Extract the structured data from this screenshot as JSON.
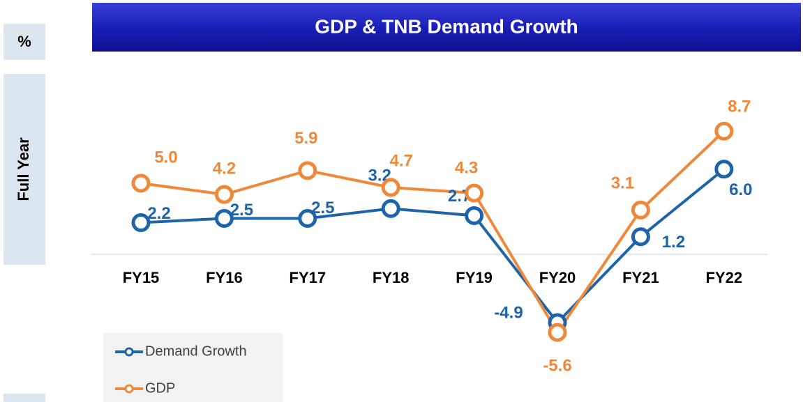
{
  "chart_data": {
    "type": "line",
    "title": "GDP & TNB Demand Growth",
    "unit_label": "%",
    "side_label": "Full Year",
    "categories": [
      "FY15",
      "FY16",
      "FY17",
      "FY18",
      "FY19",
      "FY20",
      "FY21",
      "FY22"
    ],
    "series": [
      {
        "name": "Demand Growth",
        "color": "#1d64a8",
        "values": [
          2.2,
          2.5,
          2.5,
          3.2,
          2.7,
          -4.9,
          1.2,
          6.0
        ],
        "value_labels": [
          "2.2",
          "2.5",
          "2.5",
          "3.2",
          "2.7",
          "-4.9",
          "1.2",
          "6.0"
        ]
      },
      {
        "name": "GDP",
        "color": "#f0883a",
        "values": [
          5.0,
          4.2,
          5.9,
          4.7,
          4.3,
          -5.6,
          3.1,
          8.7
        ],
        "value_labels": [
          "5.0",
          "4.2",
          "5.9",
          "4.7",
          "4.3",
          "-5.6",
          "3.1",
          "8.7"
        ]
      }
    ],
    "legend": "bottom-left"
  }
}
